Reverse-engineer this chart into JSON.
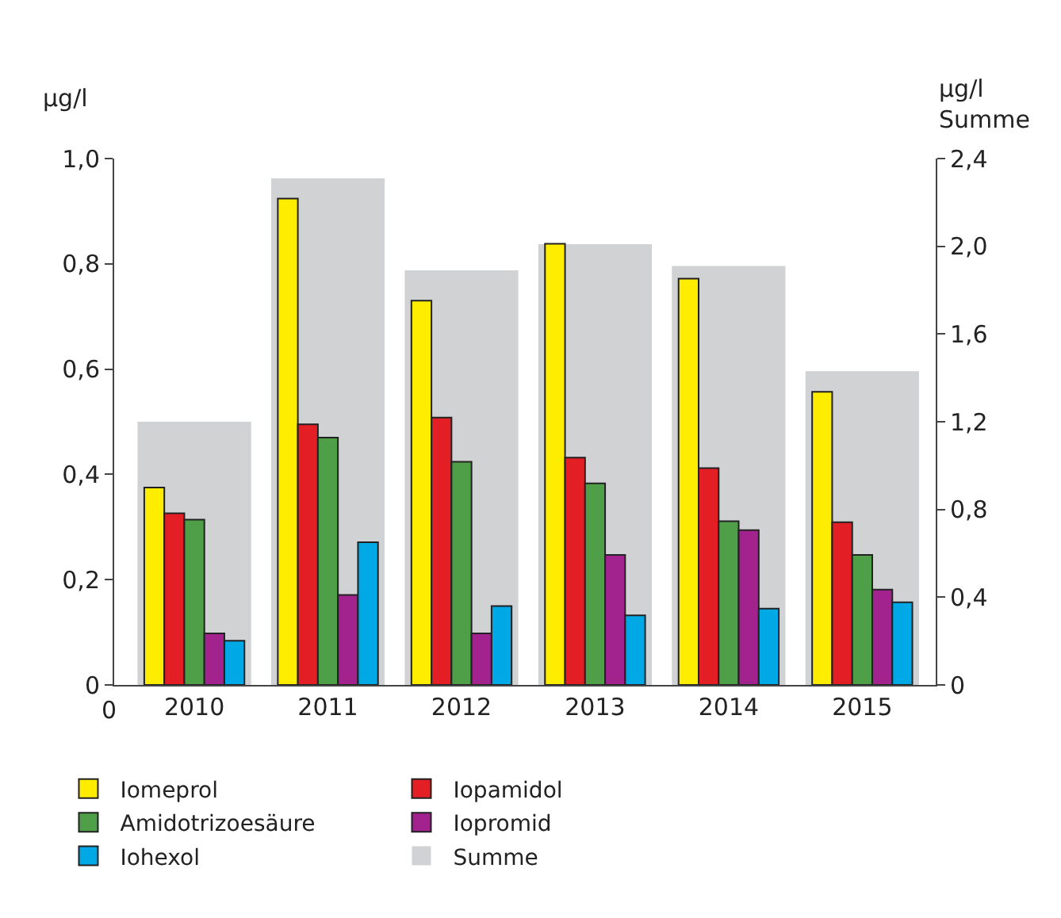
{
  "chart_data": {
    "type": "bar",
    "categories": [
      "2010",
      "2011",
      "2012",
      "2013",
      "2014",
      "2015"
    ],
    "series": [
      {
        "name": "Summe",
        "color": "#d1d2d4",
        "axis": "y2",
        "values": [
          1.2,
          2.31,
          1.89,
          2.01,
          1.91,
          1.43
        ]
      },
      {
        "name": "Iomeprol",
        "color": "#ffed00",
        "values": [
          0.375,
          0.924,
          0.73,
          0.838,
          0.772,
          0.557
        ]
      },
      {
        "name": "Iopamidol",
        "color": "#e31e24",
        "values": [
          0.326,
          0.495,
          0.508,
          0.432,
          0.412,
          0.309
        ]
      },
      {
        "name": "Amidotrizoesäure",
        "color": "#4e9f47",
        "values": [
          0.314,
          0.47,
          0.424,
          0.383,
          0.311,
          0.247
        ]
      },
      {
        "name": "Iopromid",
        "color": "#a3238e",
        "values": [
          0.098,
          0.171,
          0.098,
          0.247,
          0.294,
          0.181
        ]
      },
      {
        "name": "Iohexol",
        "color": "#00a8e6",
        "values": [
          0.084,
          0.271,
          0.15,
          0.132,
          0.145,
          0.157
        ]
      }
    ],
    "ylabel": "µg/l",
    "y2label": "µg/l\nSumme",
    "ylim": [
      0,
      1.0
    ],
    "yticks": [
      0,
      {
        "value": 0.2,
        "label": "0,2"
      },
      {
        "value": 0.4,
        "label": "0,4"
      },
      {
        "value": 0.6,
        "label": "0,6"
      },
      {
        "value": 0.8,
        "label": "0,8"
      },
      {
        "value": 1.0,
        "label": "1,0"
      }
    ],
    "y2lim": [
      0,
      2.4
    ],
    "y2ticks": [
      0,
      {
        "value": 0.4,
        "label": "0,4"
      },
      {
        "value": 0.8,
        "label": "0,8"
      },
      {
        "value": 1.2,
        "label": "1,2"
      },
      {
        "value": 1.6,
        "label": "1,6"
      },
      {
        "value": 2.0,
        "label": "2,0"
      },
      {
        "value": 2.4,
        "label": "2,4"
      }
    ],
    "annotations": [
      "0"
    ],
    "legend": "bottom"
  }
}
